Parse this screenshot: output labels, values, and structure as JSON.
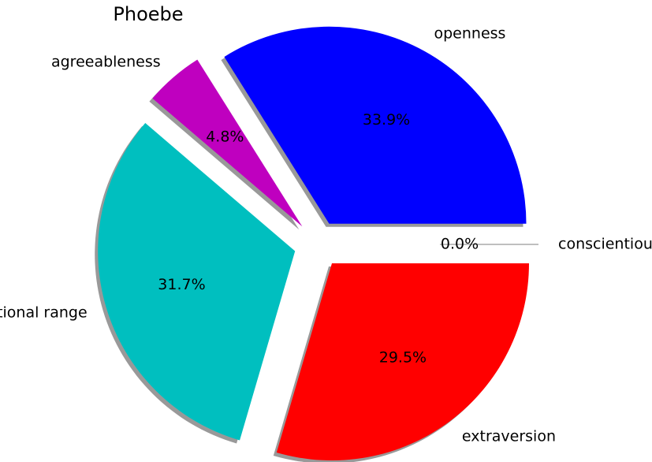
{
  "chart_data": {
    "type": "pie",
    "title": "Phoebe",
    "slices": [
      {
        "label": "openness",
        "value": 33.9,
        "pct_label": "33.9%",
        "color": "#0000ff"
      },
      {
        "label": "agreeableness",
        "value": 4.8,
        "pct_label": "4.8%",
        "color": "#bf00bf"
      },
      {
        "label": "emotional range",
        "value": 31.7,
        "pct_label": "31.7%",
        "color": "#00bfbf"
      },
      {
        "label": "extraversion",
        "value": 29.5,
        "pct_label": "29.5%",
        "color": "#ff0000"
      },
      {
        "label": "conscientiousness",
        "value": 0.0,
        "pct_label": "0.0%",
        "color": "#008000"
      }
    ],
    "start_angle_deg": 0,
    "direction": "counterclockwise",
    "exploded": true,
    "shadow": true,
    "legend": "none"
  }
}
